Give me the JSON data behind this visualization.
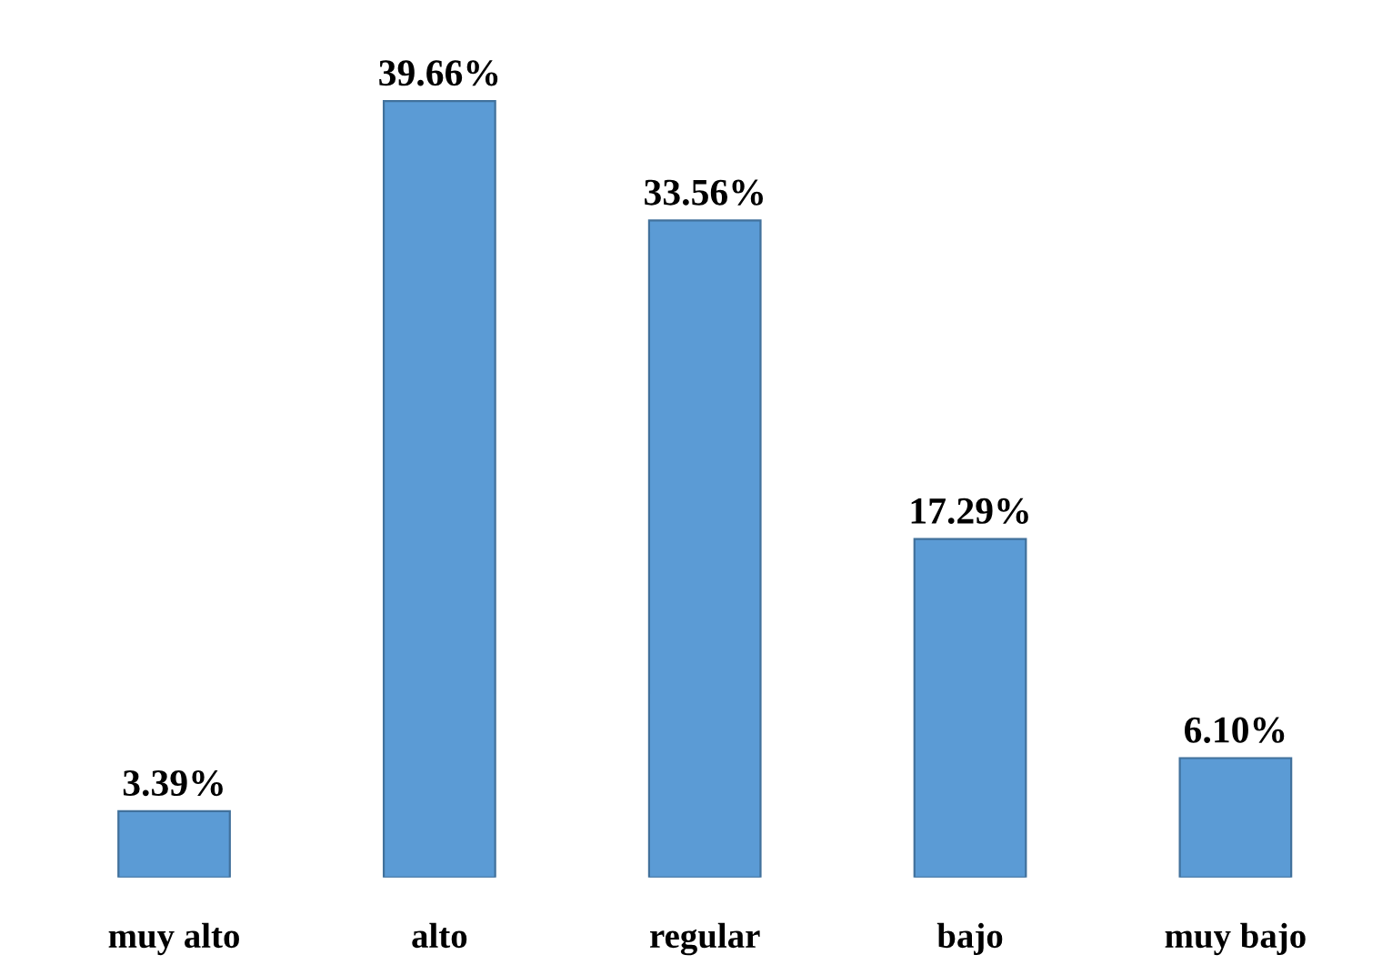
{
  "chart_data": {
    "type": "bar",
    "categories": [
      "muy alto",
      "alto",
      "regular",
      "bajo",
      "muy bajo"
    ],
    "values": [
      3.39,
      39.66,
      33.56,
      17.29,
      6.1
    ],
    "value_labels": [
      "3.39%",
      "39.66%",
      "33.56%",
      "17.29%",
      "6.10%"
    ],
    "color": "#5b9bd5",
    "grid": false,
    "legend": false
  }
}
